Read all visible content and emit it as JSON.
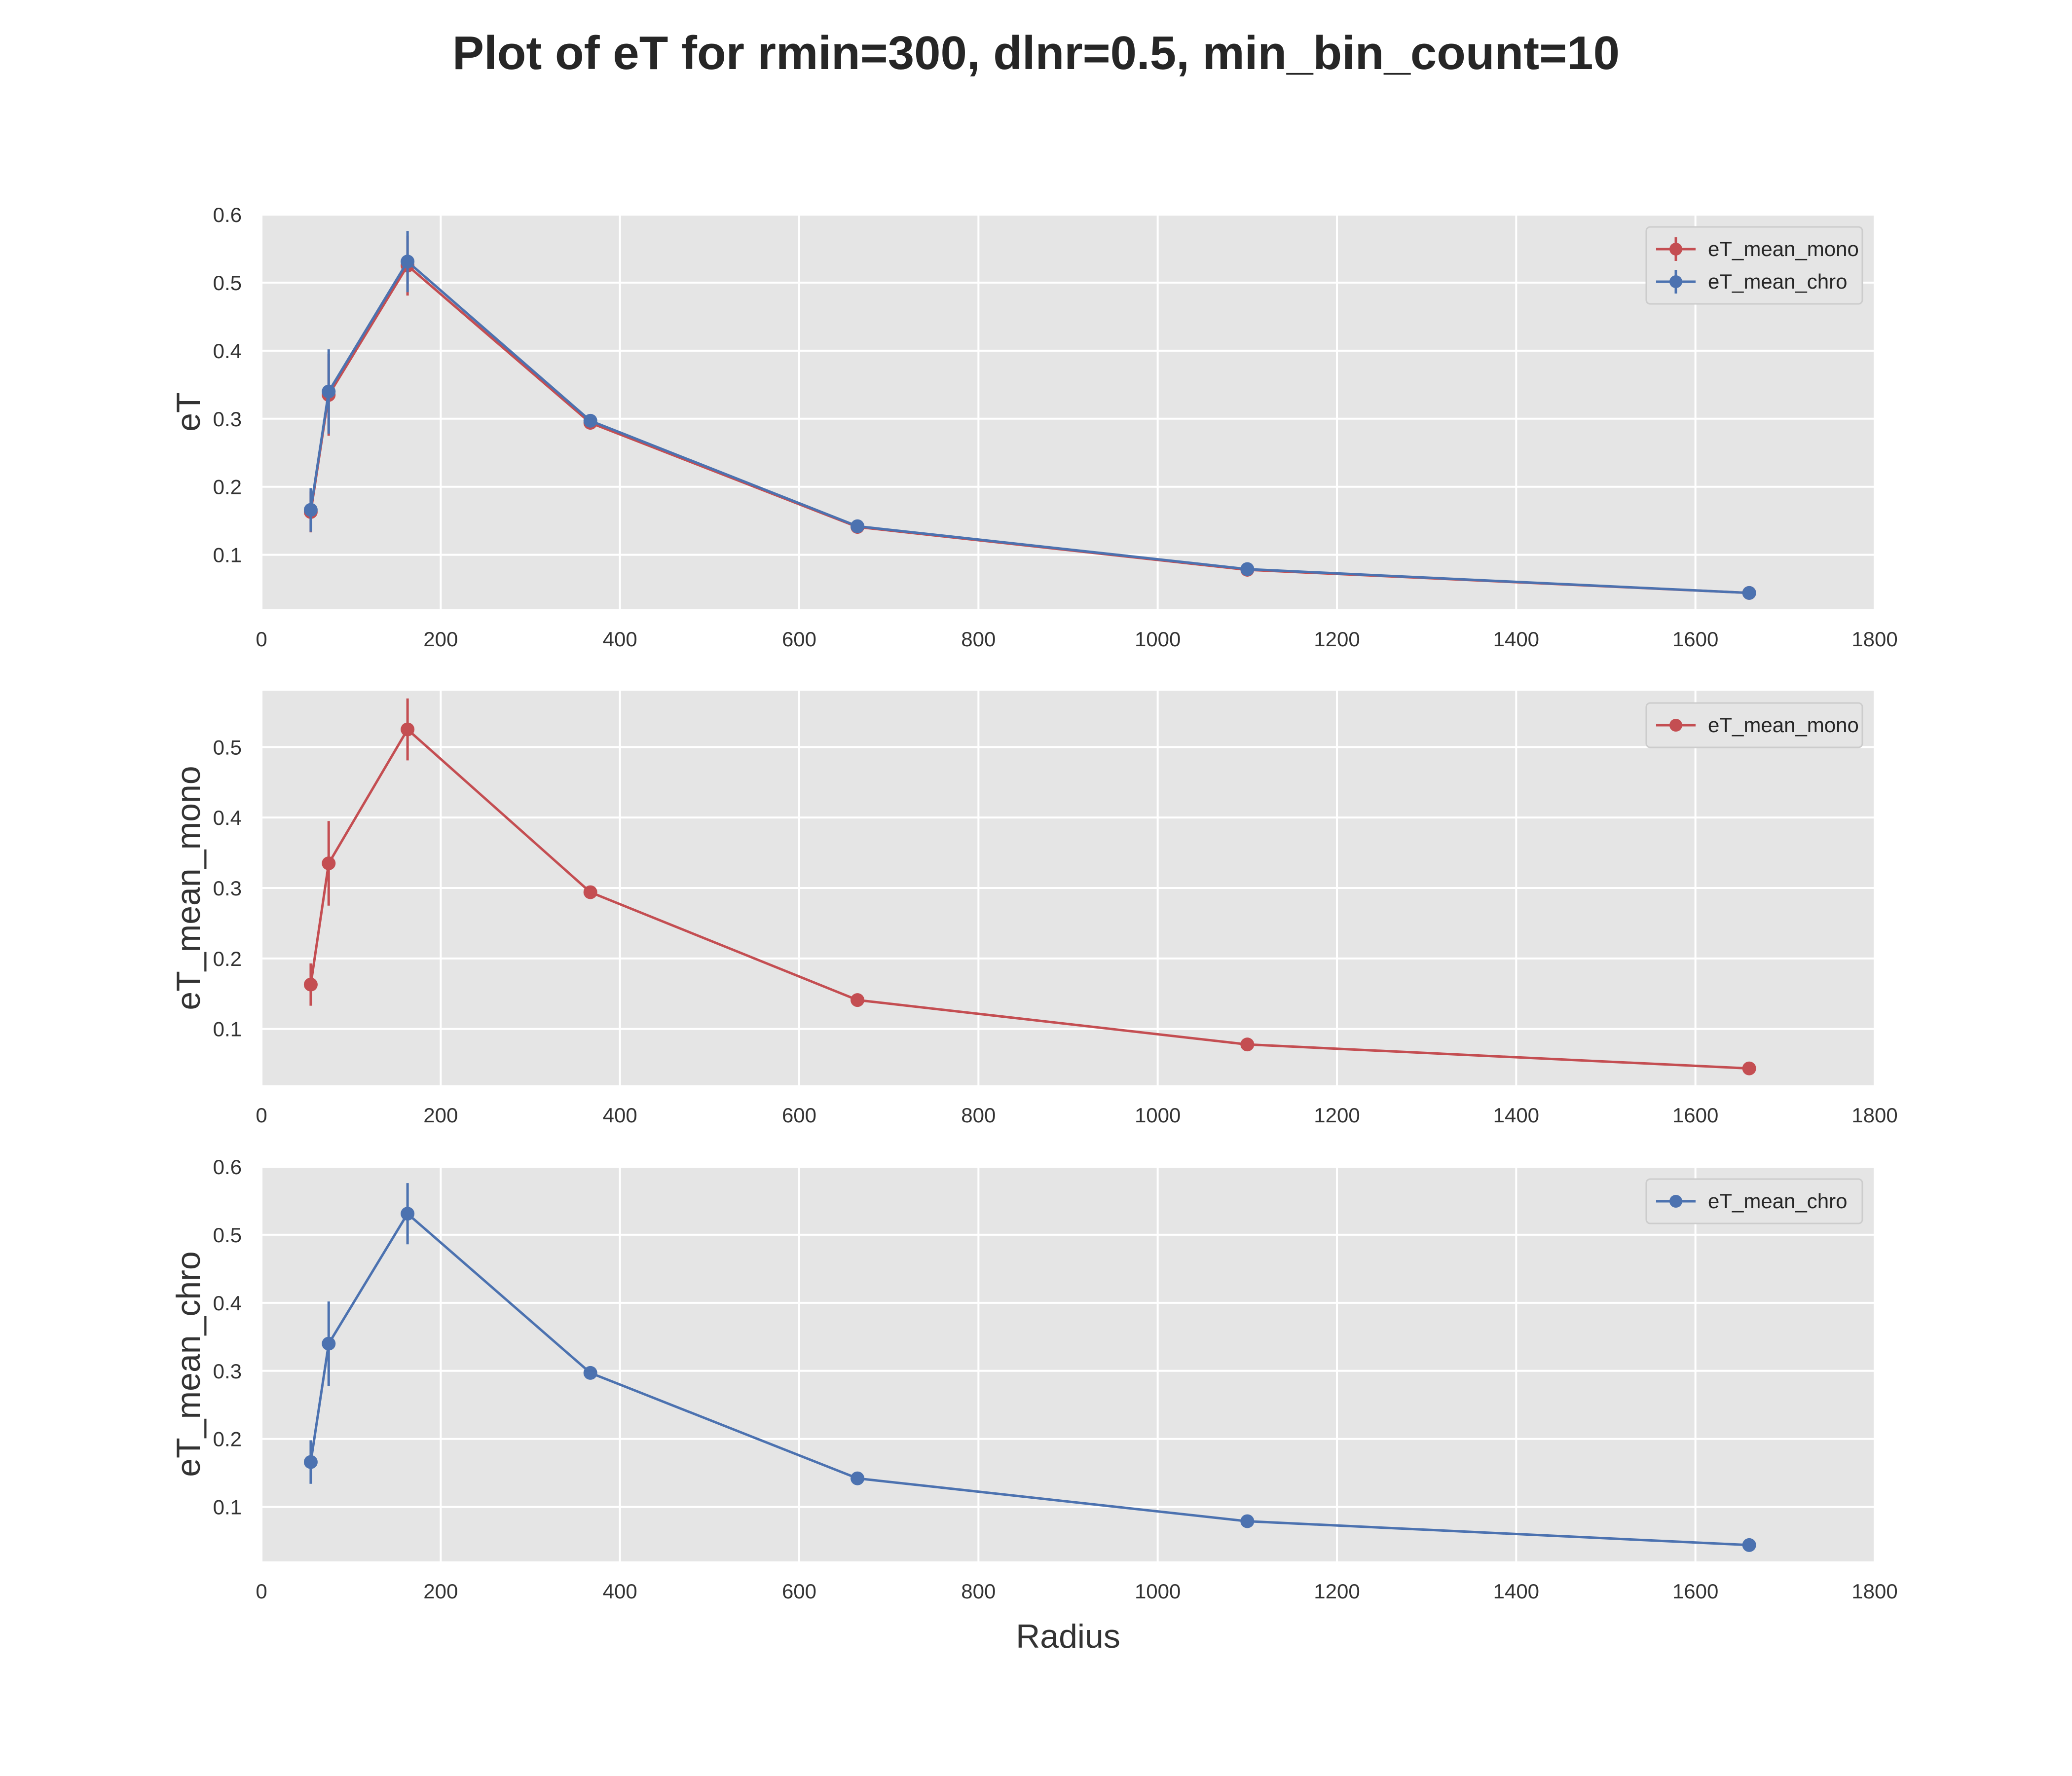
{
  "figure": {
    "title": "Plot of eT for rmin=300, dlnr=0.5, min_bin_count=10"
  },
  "colors": {
    "mono": "#c44e52",
    "chro": "#4c72b0",
    "plot_background": "#e5e5e5",
    "grid": "#ffffff"
  },
  "chart_data": [
    {
      "type": "line",
      "ylabel": "eT",
      "xlabel": "",
      "xlim": [
        0,
        1800
      ],
      "ylim": [
        0.02,
        0.6
      ],
      "x_ticks": [
        0,
        200,
        400,
        600,
        800,
        1000,
        1200,
        1400,
        1600,
        1800
      ],
      "y_ticks": [
        0.1,
        0.2,
        0.3,
        0.4,
        0.5,
        0.6
      ],
      "grid": true,
      "legend": "top-right",
      "series": [
        {
          "name": "eT_mean_mono",
          "color_key": "mono",
          "x": [
            55,
            75,
            163,
            367,
            665,
            1100,
            1660
          ],
          "y": [
            0.163,
            0.335,
            0.525,
            0.294,
            0.141,
            0.078,
            0.044
          ],
          "yerr": [
            0.03,
            0.06,
            0.044,
            0,
            0,
            0,
            0
          ]
        },
        {
          "name": "eT_mean_chro",
          "color_key": "chro",
          "x": [
            55,
            75,
            163,
            367,
            665,
            1100,
            1660
          ],
          "y": [
            0.166,
            0.34,
            0.531,
            0.297,
            0.142,
            0.079,
            0.044
          ],
          "yerr": [
            0.032,
            0.062,
            0.045,
            0,
            0,
            0,
            0
          ]
        }
      ]
    },
    {
      "type": "line",
      "ylabel": "eT_mean_mono",
      "xlabel": "",
      "xlim": [
        0,
        1800
      ],
      "ylim": [
        0.02,
        0.58
      ],
      "x_ticks": [
        0,
        200,
        400,
        600,
        800,
        1000,
        1200,
        1400,
        1600,
        1800
      ],
      "y_ticks": [
        0.1,
        0.2,
        0.3,
        0.4,
        0.5
      ],
      "grid": true,
      "legend": "top-right",
      "series": [
        {
          "name": "eT_mean_mono",
          "color_key": "mono",
          "x": [
            55,
            75,
            163,
            367,
            665,
            1100,
            1660
          ],
          "y": [
            0.163,
            0.335,
            0.525,
            0.294,
            0.141,
            0.078,
            0.044
          ],
          "yerr": [
            0.03,
            0.06,
            0.044,
            0,
            0,
            0,
            0
          ]
        }
      ]
    },
    {
      "type": "line",
      "ylabel": "eT_mean_chro",
      "xlabel": "Radius",
      "xlim": [
        0,
        1800
      ],
      "ylim": [
        0.02,
        0.6
      ],
      "x_ticks": [
        0,
        200,
        400,
        600,
        800,
        1000,
        1200,
        1400,
        1600,
        1800
      ],
      "y_ticks": [
        0.1,
        0.2,
        0.3,
        0.4,
        0.5,
        0.6
      ],
      "grid": true,
      "legend": "top-right",
      "series": [
        {
          "name": "eT_mean_chro",
          "color_key": "chro",
          "x": [
            55,
            75,
            163,
            367,
            665,
            1100,
            1660
          ],
          "y": [
            0.166,
            0.34,
            0.531,
            0.297,
            0.142,
            0.079,
            0.044
          ],
          "yerr": [
            0.032,
            0.062,
            0.045,
            0,
            0,
            0,
            0
          ]
        }
      ]
    }
  ]
}
